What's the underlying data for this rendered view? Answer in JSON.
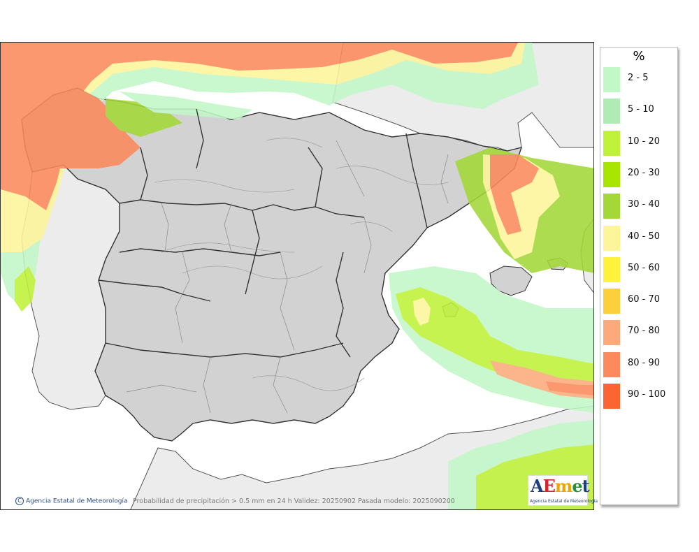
{
  "map": {
    "caption": "Probabilidad de precipitación > 0.5 mm en 24 h Validez: 20250902 Pasada modelo: 2025090200",
    "credit": "Agencia Estatal de Meteorología",
    "copyright_symbol": "C",
    "logo": {
      "letters": [
        {
          "char": "A",
          "color": "#1b3f80"
        },
        {
          "char": "E",
          "color": "#d9252a"
        },
        {
          "char": "m",
          "color": "#f0a400"
        },
        {
          "char": "e",
          "color": "#2a8f3a"
        },
        {
          "char": "t",
          "color": "#1b3f80"
        }
      ],
      "subtitle": "Agencia Estatal de Meteorología"
    },
    "colors": {
      "sea": "#ffffff",
      "land": "#d2d2d2",
      "foreign_land": "#ececec",
      "border": "#333333"
    }
  },
  "legend": {
    "unit": "%",
    "classes": [
      {
        "label": "2 - 5",
        "color": "#c2f7c8"
      },
      {
        "label": "5 - 10",
        "color": "#b0ebb4"
      },
      {
        "label": "10 - 20",
        "color": "#c0f23a"
      },
      {
        "label": "20 - 30",
        "color": "#a8e600"
      },
      {
        "label": "30 - 40",
        "color": "#a3d838"
      },
      {
        "label": "40 - 50",
        "color": "#fcf59a"
      },
      {
        "label": "50 - 60",
        "color": "#fff23c"
      },
      {
        "label": "60 - 70",
        "color": "#fcd03c"
      },
      {
        "label": "70 - 80",
        "color": "#fcaa7c"
      },
      {
        "label": "80 - 90",
        "color": "#fc8a5c"
      },
      {
        "label": "90 - 100",
        "color": "#fc6432"
      }
    ]
  }
}
